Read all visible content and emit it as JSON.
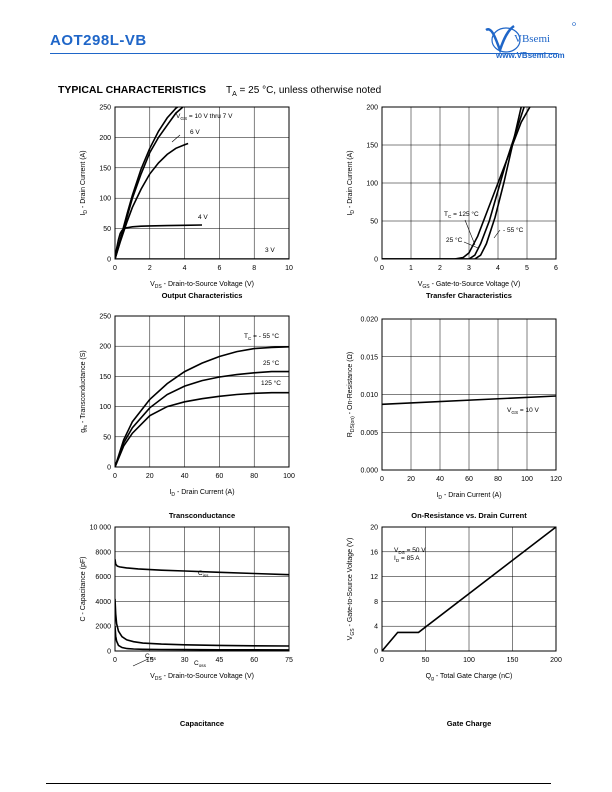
{
  "header": {
    "part_number": "AOT298L-VB",
    "brand": "VBsemi",
    "url": "www.VBsemi.com"
  },
  "section": {
    "title": "TYPICAL CHARACTERISTICS",
    "condition_prefix": "T",
    "condition_sub": "A",
    "condition_rest": " = 25 °C, unless otherwise noted"
  },
  "chart_data": [
    {
      "id": "output",
      "type": "line",
      "title": "Output Characteristics",
      "xlabel": "V_DS - Drain-to-Source Voltage (V)",
      "ylabel": "I_D - Drain Current (A)",
      "xlim": [
        0,
        10
      ],
      "ylim": [
        0,
        250
      ],
      "xticks": [
        "0",
        "2",
        "4",
        "6",
        "8",
        "10"
      ],
      "yticks": [
        "0",
        "50",
        "100",
        "150",
        "200",
        "250"
      ],
      "grid": true,
      "series": [
        {
          "name": "V_GS = 10 V thru 7 V",
          "x": [
            0,
            0.3,
            0.7,
            1,
            1.5,
            2,
            2.5,
            3,
            3.5,
            3.9
          ],
          "y": [
            0,
            30,
            70,
            100,
            140,
            175,
            200,
            220,
            240,
            250
          ]
        },
        {
          "name": "V_GS = 10 V thru 7 V",
          "x": [
            0,
            0.3,
            0.7,
            1,
            1.5,
            2,
            2.5,
            3,
            3.5,
            3.7
          ],
          "y": [
            0,
            32,
            75,
            105,
            148,
            182,
            210,
            232,
            248,
            252
          ]
        },
        {
          "name": "6 V",
          "x": [
            0,
            0.3,
            0.7,
            1,
            1.5,
            2,
            2.5,
            3,
            3.5,
            4,
            4.2
          ],
          "y": [
            0,
            28,
            62,
            85,
            115,
            140,
            158,
            172,
            182,
            188,
            190
          ]
        },
        {
          "name": "4 V",
          "x": [
            0,
            0.1,
            0.2,
            0.3,
            0.4,
            0.6,
            0.8,
            1,
            1.5,
            2,
            3,
            4,
            5
          ],
          "y": [
            0,
            18,
            32,
            42,
            47,
            51,
            52,
            53,
            54,
            54.5,
            55,
            55.5,
            56
          ]
        },
        {
          "name": "3 V",
          "x": [
            0,
            10
          ],
          "y": [
            0,
            0
          ]
        }
      ],
      "annotations": [
        "V_GS = 10 V thru 7 V",
        "6 V",
        "4 V",
        "3 V"
      ]
    },
    {
      "id": "transfer",
      "type": "line",
      "title": "Transfer Characteristics",
      "xlabel": "V_GS - Gate-to-Source Voltage (V)",
      "ylabel": "I_D - Drain Current (A)",
      "xlim": [
        0,
        6
      ],
      "ylim": [
        0,
        200
      ],
      "xticks": [
        "0",
        "1",
        "2",
        "3",
        "4",
        "5",
        "6"
      ],
      "yticks": [
        "0",
        "50",
        "100",
        "150",
        "200"
      ],
      "grid": true,
      "series": [
        {
          "name": "T_C = 125 °C",
          "x": [
            0,
            2.5,
            2.8,
            3,
            3.3,
            3.6,
            4,
            4.4,
            4.8,
            5.1
          ],
          "y": [
            0,
            0,
            2,
            8,
            30,
            60,
            100,
            140,
            180,
            200
          ]
        },
        {
          "name": "25 °C",
          "x": [
            0,
            3,
            3.2,
            3.4,
            3.7,
            4,
            4.3,
            4.6,
            4.9
          ],
          "y": [
            0,
            0,
            5,
            20,
            50,
            90,
            130,
            165,
            200
          ]
        },
        {
          "name": "- 55 °C",
          "x": [
            0,
            3.2,
            3.4,
            3.6,
            3.9,
            4.2,
            4.5,
            4.8
          ],
          "y": [
            0,
            0,
            5,
            20,
            55,
            100,
            150,
            200
          ]
        }
      ],
      "annotations": [
        "T_C = 125 °C",
        "25 °C",
        "- 55 °C"
      ]
    },
    {
      "id": "transconductance",
      "type": "line",
      "title": "Transconductance",
      "xlabel": "I_D - Drain Current (A)",
      "ylabel": "g_fs - Transconductance (S)",
      "xlim": [
        0,
        100
      ],
      "ylim": [
        0,
        250
      ],
      "xticks": [
        "0",
        "20",
        "40",
        "60",
        "80",
        "100"
      ],
      "yticks": [
        "0",
        "50",
        "100",
        "150",
        "200",
        "250"
      ],
      "grid": true,
      "series": [
        {
          "name": "T_C = - 55 °C",
          "x": [
            0,
            5,
            10,
            20,
            30,
            40,
            50,
            60,
            70,
            80,
            90,
            100
          ],
          "y": [
            0,
            45,
            75,
            112,
            138,
            158,
            172,
            183,
            191,
            196,
            198,
            199
          ]
        },
        {
          "name": "25 °C",
          "x": [
            0,
            5,
            10,
            20,
            30,
            40,
            50,
            60,
            70,
            80,
            90,
            100
          ],
          "y": [
            0,
            40,
            65,
            98,
            120,
            134,
            143,
            149,
            153,
            156,
            158,
            158
          ]
        },
        {
          "name": "125 °C",
          "x": [
            0,
            5,
            10,
            20,
            30,
            40,
            50,
            60,
            70,
            80,
            90,
            100
          ],
          "y": [
            0,
            35,
            56,
            85,
            100,
            108,
            113,
            117,
            120,
            122,
            123,
            123
          ]
        }
      ],
      "annotations": [
        "T_C = - 55 °C",
        "25 °C",
        "125 °C"
      ]
    },
    {
      "id": "on_resistance",
      "type": "line",
      "title": "On-Resistance vs. Drain Current",
      "xlabel": "I_D - Drain Current (A)",
      "ylabel": "R_DS(on) - On-Resistance (Ω)",
      "xlim": [
        0,
        120
      ],
      "ylim": [
        0,
        0.02
      ],
      "xticks": [
        "0",
        "20",
        "40",
        "60",
        "80",
        "100",
        "120"
      ],
      "yticks": [
        "0.000",
        "0.005",
        "0.010",
        "0.015",
        "0.020"
      ],
      "grid": true,
      "series": [
        {
          "name": "V_GS = 10 V",
          "x": [
            0,
            120
          ],
          "y": [
            0.0087,
            0.0098
          ]
        }
      ],
      "annotations": [
        "V_GS = 10 V"
      ]
    },
    {
      "id": "capacitance",
      "type": "line",
      "title": "Capacitance",
      "xlabel": "V_DS - Drain-to-Source Voltage (V)",
      "ylabel": "C - Capacitance (pF)",
      "xlim": [
        0,
        75
      ],
      "ylim": [
        0,
        10000
      ],
      "xticks": [
        "0",
        "15",
        "30",
        "45",
        "60",
        "75"
      ],
      "yticks": [
        "0",
        "2000",
        "4000",
        "6000",
        "8000",
        "10 000"
      ],
      "grid": true,
      "series": [
        {
          "name": "C_iss",
          "x": [
            0,
            0.3,
            1,
            2,
            5,
            10,
            20,
            30,
            45,
            60,
            75
          ],
          "y": [
            7400,
            7000,
            6850,
            6780,
            6700,
            6620,
            6520,
            6450,
            6350,
            6250,
            6150
          ]
        },
        {
          "name": "C_oss",
          "x": [
            0,
            0.3,
            0.7,
            1.5,
            3,
            5,
            8,
            12,
            20,
            30,
            45,
            60,
            75
          ],
          "y": [
            4200,
            3000,
            2200,
            1600,
            1150,
            900,
            750,
            640,
            560,
            500,
            450,
            420,
            400
          ]
        },
        {
          "name": "C_rss",
          "x": [
            0,
            0.3,
            0.7,
            1.5,
            3,
            5,
            8,
            12,
            20,
            30,
            45,
            60,
            75
          ],
          "y": [
            2000,
            1200,
            800,
            450,
            280,
            200,
            160,
            140,
            120,
            110,
            100,
            95,
            90
          ]
        }
      ],
      "annotations": [
        "C_iss",
        "C_rss",
        "C_oss"
      ]
    },
    {
      "id": "gate_charge",
      "type": "line",
      "title": "Gate Charge",
      "xlabel": "Q_g - Total Gate Charge (nC)",
      "ylabel": "V_GS - Gate-to-Source Voltage (V)",
      "xlim": [
        0,
        200
      ],
      "ylim": [
        0,
        20
      ],
      "xticks": [
        "0",
        "50",
        "100",
        "150",
        "200"
      ],
      "yticks": [
        "0",
        "4",
        "8",
        "12",
        "16",
        "20"
      ],
      "grid": true,
      "series": [
        {
          "name": "V_DS = 50 V, I_D = 85 A",
          "x": [
            0,
            18,
            42,
            200
          ],
          "y": [
            0,
            3,
            3,
            20
          ]
        }
      ],
      "annotations": [
        "V_DS = 50 V",
        "I_D = 85 A"
      ]
    }
  ]
}
